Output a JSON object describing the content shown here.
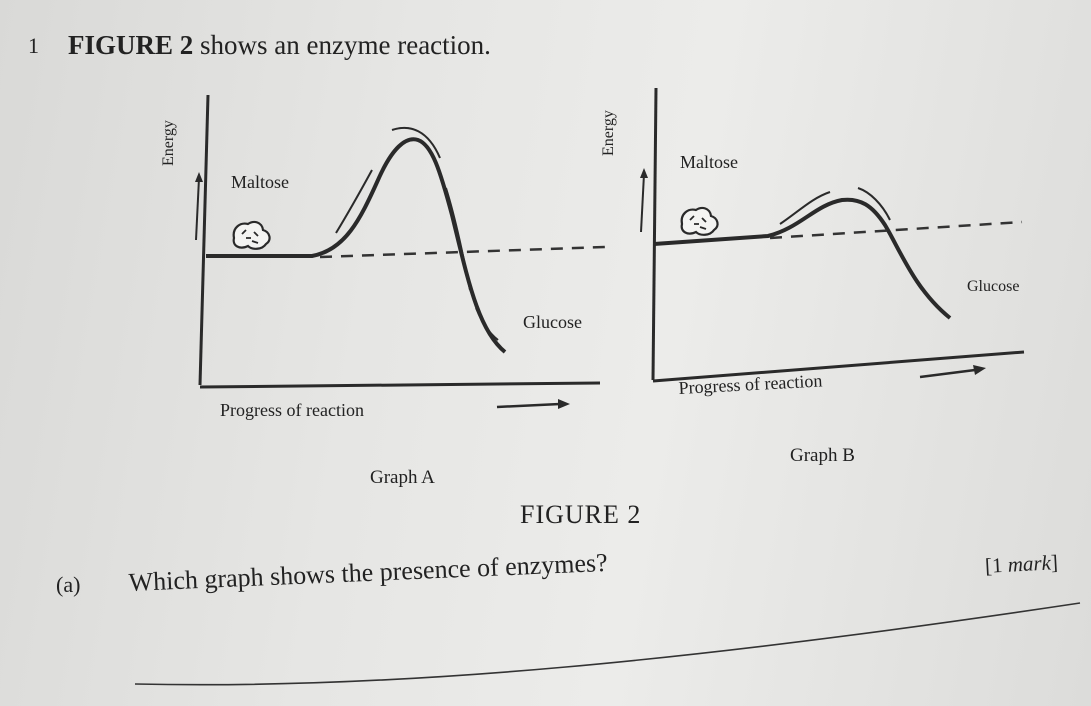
{
  "question": {
    "number": "1",
    "figure_ref_bold": "FIGURE 2",
    "intro_rest": " shows an enzyme reaction."
  },
  "graph_a": {
    "y_label": "Energy",
    "substrate_label": "Maltose",
    "product_label": "Glucose",
    "x_label": "Progress of reaction",
    "caption": "Graph A"
  },
  "graph_b": {
    "y_label": "Energy",
    "substrate_label": "Maltose",
    "product_label": "Glucose",
    "x_label": "Progress of reaction",
    "caption": "Graph B"
  },
  "figure_caption": "FIGURE 2",
  "part_a": {
    "label": "(a)",
    "text": "Which graph shows the presence of enzymes?",
    "mark_prefix": "[1 ",
    "mark_word": "mark",
    "mark_suffix": "]"
  }
}
